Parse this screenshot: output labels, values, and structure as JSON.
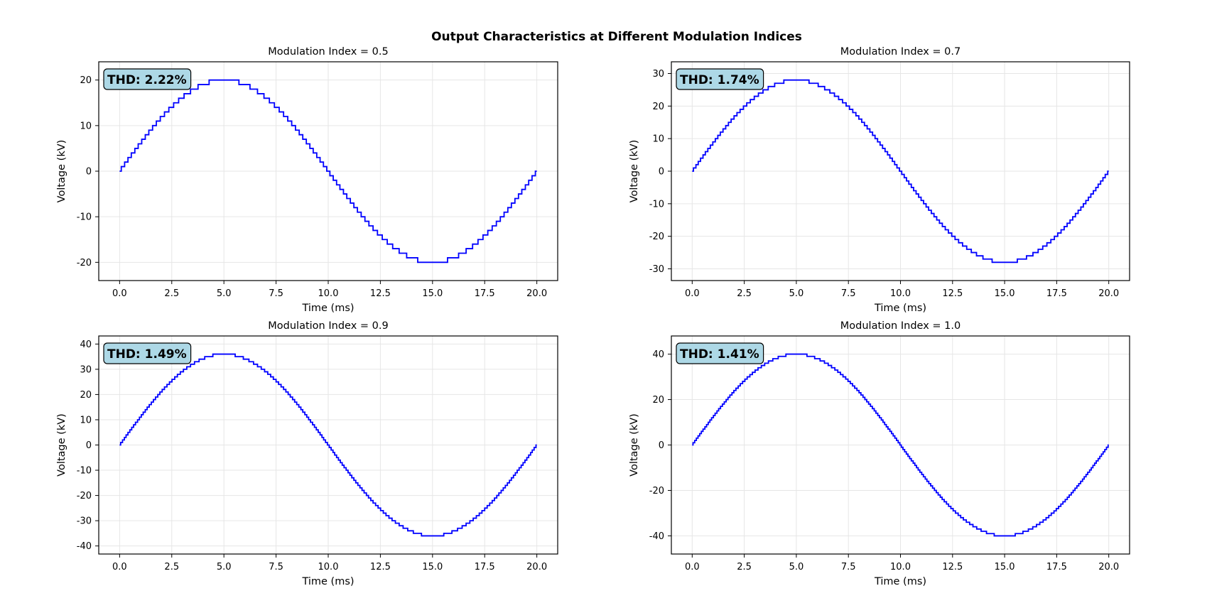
{
  "figure": {
    "title": "Output Characteristics at Different Modulation Indices"
  },
  "chart_data": [
    {
      "type": "line",
      "title": "Modulation Index = 0.5",
      "xlabel": "Time (ms)",
      "ylabel": "Voltage (kV)",
      "annotation": "THD: 2.22%",
      "amplitude": 20,
      "step": 1,
      "xlim": [
        -1,
        21
      ],
      "ylim": [
        -24,
        24
      ],
      "xticks": [
        0.0,
        2.5,
        5.0,
        7.5,
        10.0,
        12.5,
        15.0,
        17.5,
        20.0
      ],
      "xtick_labels": [
        "0.0",
        "2.5",
        "5.0",
        "7.5",
        "10.0",
        "12.5",
        "15.0",
        "17.5",
        "20.0"
      ],
      "yticks": [
        20,
        10,
        0,
        -10,
        -20
      ],
      "ytick_labels": [
        "20",
        "10",
        "0",
        "-10",
        "-20"
      ],
      "series": [
        {
          "color": "#0000ff",
          "x_range": [
            0,
            20
          ],
          "waveform": "staircase sine, 20 ms period"
        }
      ],
      "grid": true
    },
    {
      "type": "line",
      "title": "Modulation Index = 0.7",
      "xlabel": "Time (ms)",
      "ylabel": "Voltage (kV)",
      "annotation": "THD: 1.74%",
      "amplitude": 28,
      "step": 1,
      "xlim": [
        -1,
        21
      ],
      "ylim": [
        -33.6,
        33.6
      ],
      "xticks": [
        0.0,
        2.5,
        5.0,
        7.5,
        10.0,
        12.5,
        15.0,
        17.5,
        20.0
      ],
      "xtick_labels": [
        "0.0",
        "2.5",
        "5.0",
        "7.5",
        "10.0",
        "12.5",
        "15.0",
        "17.5",
        "20.0"
      ],
      "yticks": [
        30,
        20,
        10,
        0,
        -10,
        -20,
        -30
      ],
      "ytick_labels": [
        "30",
        "20",
        "10",
        "0",
        "-10",
        "-20",
        "-30"
      ],
      "series": [
        {
          "color": "#0000ff",
          "x_range": [
            0,
            20
          ],
          "waveform": "staircase sine, 20 ms period"
        }
      ],
      "grid": true
    },
    {
      "type": "line",
      "title": "Modulation Index = 0.9",
      "xlabel": "Time (ms)",
      "ylabel": "Voltage (kV)",
      "annotation": "THD: 1.49%",
      "amplitude": 36,
      "step": 1,
      "xlim": [
        -1,
        21
      ],
      "ylim": [
        -43.2,
        43.2
      ],
      "xticks": [
        0.0,
        2.5,
        5.0,
        7.5,
        10.0,
        12.5,
        15.0,
        17.5,
        20.0
      ],
      "xtick_labels": [
        "0.0",
        "2.5",
        "5.0",
        "7.5",
        "10.0",
        "12.5",
        "15.0",
        "17.5",
        "20.0"
      ],
      "yticks": [
        40,
        30,
        20,
        10,
        0,
        -10,
        -20,
        -30,
        -40
      ],
      "ytick_labels": [
        "40",
        "30",
        "20",
        "10",
        "0",
        "-10",
        "-20",
        "-30",
        "-40"
      ],
      "series": [
        {
          "color": "#0000ff",
          "x_range": [
            0,
            20
          ],
          "waveform": "staircase sine, 20 ms period"
        }
      ],
      "grid": true
    },
    {
      "type": "line",
      "title": "Modulation Index = 1.0",
      "xlabel": "Time (ms)",
      "ylabel": "Voltage (kV)",
      "annotation": "THD: 1.41%",
      "amplitude": 40,
      "step": 1,
      "xlim": [
        -1,
        21
      ],
      "ylim": [
        -48,
        48
      ],
      "xticks": [
        0.0,
        2.5,
        5.0,
        7.5,
        10.0,
        12.5,
        15.0,
        17.5,
        20.0
      ],
      "xtick_labels": [
        "0.0",
        "2.5",
        "5.0",
        "7.5",
        "10.0",
        "12.5",
        "15.0",
        "17.5",
        "20.0"
      ],
      "yticks": [
        40,
        20,
        0,
        -20,
        -40
      ],
      "ytick_labels": [
        "40",
        "20",
        "0",
        "-20",
        "-40"
      ],
      "series": [
        {
          "color": "#0000ff",
          "x_range": [
            0,
            20
          ],
          "waveform": "staircase sine, 20 ms period"
        }
      ],
      "grid": true
    }
  ]
}
